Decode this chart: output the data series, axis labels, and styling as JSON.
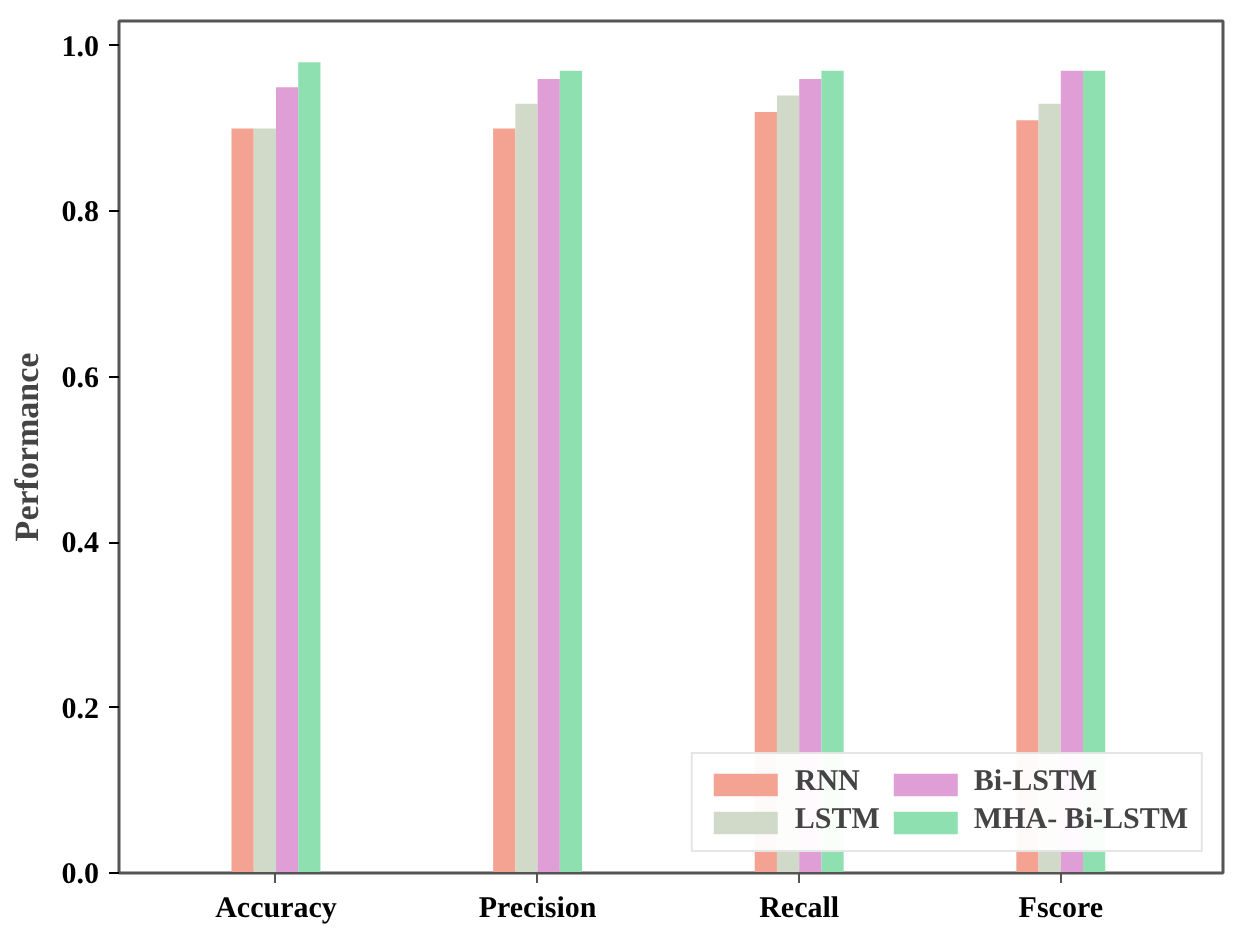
{
  "chart_data": {
    "type": "bar",
    "ylabel": "Performance",
    "categories": [
      "Accuracy",
      "Precision",
      "Recall",
      "Fscore"
    ],
    "series": [
      {
        "name": "RNN",
        "color": "#f4a393",
        "values": [
          0.9,
          0.9,
          0.92,
          0.91
        ]
      },
      {
        "name": "LSTM",
        "color": "#d1d9c8",
        "values": [
          0.9,
          0.93,
          0.94,
          0.93
        ]
      },
      {
        "name": "Bi-LSTM",
        "color": "#df9fd6",
        "values": [
          0.95,
          0.96,
          0.96,
          0.97
        ]
      },
      {
        "name": "MHA- Bi-LSTM",
        "color": "#8fe0b0",
        "values": [
          0.98,
          0.97,
          0.97,
          0.97
        ]
      }
    ],
    "ylim": [
      0,
      1.03
    ],
    "yticks": [
      {
        "value": 0,
        "label": "0.0"
      },
      {
        "value": 0.2,
        "label": "0.2"
      },
      {
        "value": 0.4,
        "label": "0.4"
      },
      {
        "value": 0.6,
        "label": "0.6"
      },
      {
        "value": 0.8,
        "label": "0.8"
      },
      {
        "value": 1.0,
        "label": "1.0"
      }
    ],
    "grid": false,
    "legend": "bottom right"
  }
}
